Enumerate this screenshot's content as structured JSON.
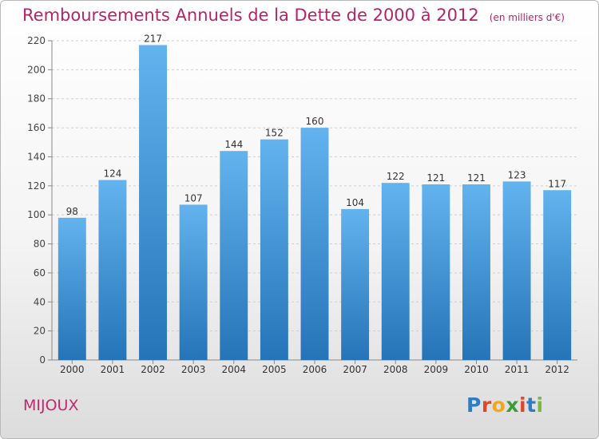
{
  "chart_data": {
    "type": "bar",
    "title": "Remboursements Annuels de la Dette de 2000 à 2012",
    "subtitle": "(en milliers d'€)",
    "xlabel": "",
    "ylabel": "",
    "categories": [
      "2000",
      "2001",
      "2002",
      "2003",
      "2004",
      "2005",
      "2006",
      "2007",
      "2008",
      "2009",
      "2010",
      "2011",
      "2012"
    ],
    "values": [
      98,
      124,
      217,
      107,
      144,
      152,
      160,
      104,
      122,
      121,
      121,
      123,
      117
    ],
    "ylim": [
      0,
      220
    ],
    "yticks": [
      0,
      20,
      40,
      60,
      80,
      100,
      120,
      140,
      160,
      180,
      200,
      220
    ],
    "grid": true,
    "legend": "none",
    "bar_color": "#3f96dc",
    "bar_color_light": "#5fb1ec",
    "bar_color_dark": "#2a78be",
    "data_labels": true
  },
  "footer": {
    "town": "MIJOUX",
    "logo": "Proxiti"
  },
  "colors": {
    "title": "#b3246b",
    "town": "#c2286f"
  }
}
